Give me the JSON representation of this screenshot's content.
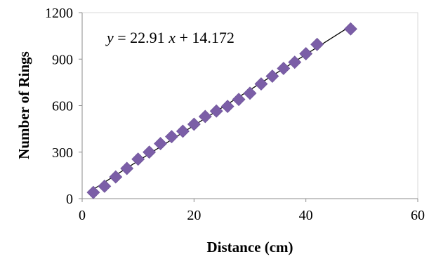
{
  "chart_data": {
    "type": "scatter",
    "xlabel": "Distance (cm)",
    "ylabel": "Number of Rings",
    "xlim": [
      0,
      60
    ],
    "ylim": [
      0,
      1200
    ],
    "x_ticks": [
      0,
      20,
      40,
      60
    ],
    "y_ticks": [
      0,
      300,
      600,
      900,
      1200
    ],
    "x_tick_labels": [
      "0",
      "20",
      "40",
      "60"
    ],
    "y_tick_labels": [
      "0",
      "300",
      "600",
      "900",
      "1200"
    ],
    "grid": false,
    "legend": "none",
    "marker": "diamond",
    "marker_color": "#7b5ea7",
    "trendline_color": "#000000",
    "series": [
      {
        "x": [
          2,
          4,
          6,
          8,
          10,
          12,
          14,
          16,
          18,
          20,
          22,
          24,
          26,
          28,
          30,
          32,
          34,
          36,
          38,
          40,
          42,
          48
        ],
        "y": [
          40,
          80,
          140,
          195,
          255,
          300,
          355,
          400,
          435,
          480,
          530,
          565,
          595,
          640,
          680,
          740,
          790,
          840,
          880,
          935,
          995,
          1095
        ]
      }
    ],
    "trendline": {
      "slope": 22.91,
      "intercept": 14.172,
      "x_range": [
        2,
        48
      ]
    },
    "equation": {
      "y": "y",
      "equals_coef": " = 22.91 ",
      "x": "x",
      "plus_const": " + 14.172"
    }
  }
}
